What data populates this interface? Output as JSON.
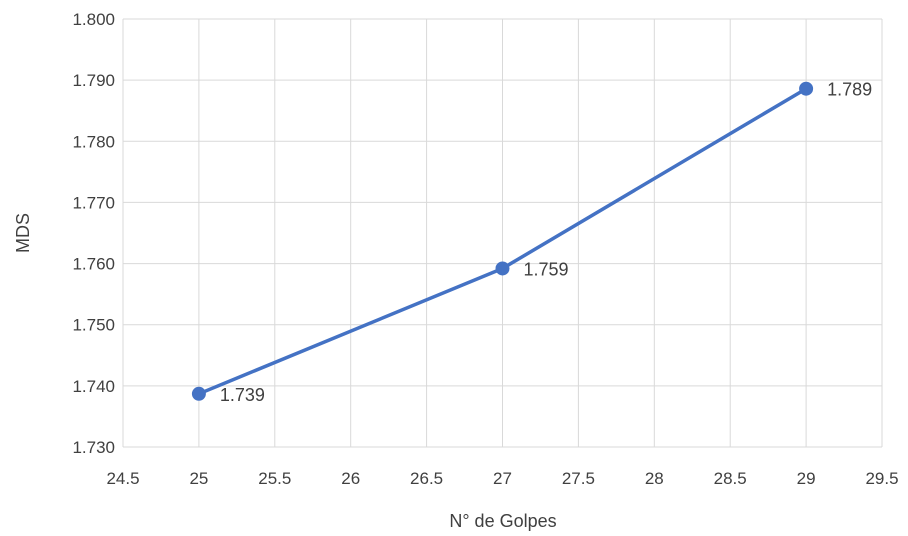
{
  "chart_data": {
    "type": "line",
    "xlabel": "N° de Golpes",
    "ylabel": "MDS",
    "xlim": [
      24.5,
      29.5
    ],
    "ylim": [
      1.73,
      1.8
    ],
    "x_ticks": [
      "24.5",
      "25",
      "25.5",
      "26",
      "26.5",
      "27",
      "27.5",
      "28",
      "28.5",
      "29",
      "29.5"
    ],
    "y_ticks": [
      "1.730",
      "1.740",
      "1.750",
      "1.760",
      "1.770",
      "1.780",
      "1.790",
      "1.800"
    ],
    "grid": true,
    "series": [
      {
        "x": [
          25,
          27,
          29
        ],
        "y": [
          1.7387,
          1.7592,
          1.7886
        ],
        "labels": [
          "1.739",
          "1.759",
          "1.789"
        ],
        "color": "#4472C4"
      }
    ]
  }
}
